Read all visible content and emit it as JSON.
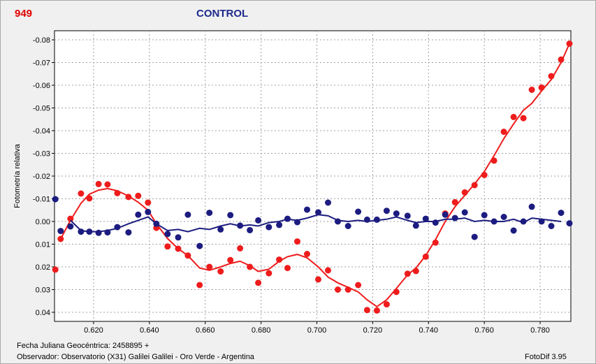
{
  "header": {
    "id_label": "949",
    "title": "CONTROL"
  },
  "footer": {
    "jd_text": "Fecha Juliana Geocéntrica: 2458895 +",
    "observer_text": "Observador: Observatorio (X31) Galilei Galilei - Oro Verde - Argentina",
    "software_text": "FotoDif 3.95"
  },
  "chart_data": {
    "type": "scatter",
    "title": "CONTROL",
    "xlabel": "",
    "ylabel": "Fotometría relativa",
    "xlim": [
      0.606,
      0.791
    ],
    "ylim": [
      0.044,
      -0.084
    ],
    "y_inverted": true,
    "grid": true,
    "x_ticks": [
      "0.620",
      "0.640",
      "0.660",
      "0.680",
      "0.700",
      "0.720",
      "0.740",
      "0.760",
      "0.780"
    ],
    "x_tick_values": [
      0.62,
      0.64,
      0.66,
      0.68,
      0.7,
      0.72,
      0.74,
      0.76,
      0.78
    ],
    "y_ticks": [
      "-0.08",
      "-0.07",
      "-0.06",
      "-0.05",
      "-0.04",
      "-0.03",
      "-0.02",
      "-0.01",
      "0.00",
      "0.01",
      "0.02",
      "0.03",
      "0.04"
    ],
    "y_tick_values": [
      -0.08,
      -0.07,
      -0.06,
      -0.05,
      -0.04,
      -0.03,
      -0.02,
      -0.01,
      0.0,
      0.01,
      0.02,
      0.03,
      0.04
    ],
    "series": [
      {
        "color": "#ee1c1c",
        "points": [
          [
            0.6063,
            0.0212
          ],
          [
            0.6082,
            0.0077
          ],
          [
            0.6117,
            -0.0012
          ],
          [
            0.6155,
            -0.0123
          ],
          [
            0.6185,
            -0.0102
          ],
          [
            0.6218,
            -0.0165
          ],
          [
            0.625,
            -0.0163
          ],
          [
            0.6285,
            -0.0125
          ],
          [
            0.6325,
            -0.0108
          ],
          [
            0.636,
            -0.0113
          ],
          [
            0.6395,
            -0.0083
          ],
          [
            0.6425,
            0.0028
          ],
          [
            0.6465,
            0.011
          ],
          [
            0.6503,
            0.012
          ],
          [
            0.6538,
            0.015
          ],
          [
            0.658,
            0.028
          ],
          [
            0.6615,
            0.02
          ],
          [
            0.6655,
            0.022
          ],
          [
            0.669,
            0.017
          ],
          [
            0.6725,
            0.0118
          ],
          [
            0.676,
            0.02
          ],
          [
            0.679,
            0.027
          ],
          [
            0.6828,
            0.0228
          ],
          [
            0.6865,
            0.0168
          ],
          [
            0.6895,
            0.0205
          ],
          [
            0.693,
            0.0088
          ],
          [
            0.6965,
            0.0143
          ],
          [
            0.7005,
            0.0255
          ],
          [
            0.704,
            0.0215
          ],
          [
            0.7075,
            0.03
          ],
          [
            0.7112,
            0.03
          ],
          [
            0.7148,
            0.028
          ],
          [
            0.718,
            0.039
          ],
          [
            0.7215,
            0.0392
          ],
          [
            0.725,
            0.0365
          ],
          [
            0.7285,
            0.031
          ],
          [
            0.7325,
            0.023
          ],
          [
            0.7355,
            0.0218
          ],
          [
            0.739,
            0.0155
          ],
          [
            0.7425,
            0.0093
          ],
          [
            0.746,
            -0.0035
          ],
          [
            0.7495,
            -0.0085
          ],
          [
            0.753,
            -0.0128
          ],
          [
            0.7565,
            -0.016
          ],
          [
            0.76,
            -0.0205
          ],
          [
            0.7635,
            -0.0268
          ],
          [
            0.767,
            -0.0395
          ],
          [
            0.7705,
            -0.046
          ],
          [
            0.774,
            -0.0455
          ],
          [
            0.777,
            -0.058
          ],
          [
            0.7805,
            -0.059
          ],
          [
            0.784,
            -0.064
          ],
          [
            0.7875,
            -0.0713
          ],
          [
            0.7905,
            -0.0783
          ]
        ],
        "trend": [
          [
            0.6082,
            0.0077
          ],
          [
            0.6117,
            -0.0005
          ],
          [
            0.6155,
            -0.008
          ],
          [
            0.6185,
            -0.012
          ],
          [
            0.6218,
            -0.0138
          ],
          [
            0.625,
            -0.0145
          ],
          [
            0.6285,
            -0.0135
          ],
          [
            0.6325,
            -0.0112
          ],
          [
            0.636,
            -0.0085
          ],
          [
            0.6395,
            -0.005
          ],
          [
            0.6425,
            0.001
          ],
          [
            0.6465,
            0.0075
          ],
          [
            0.6503,
            0.012
          ],
          [
            0.6538,
            0.015
          ],
          [
            0.658,
            0.0205
          ],
          [
            0.6615,
            0.0215
          ],
          [
            0.6655,
            0.02
          ],
          [
            0.669,
            0.0185
          ],
          [
            0.6725,
            0.0175
          ],
          [
            0.676,
            0.0195
          ],
          [
            0.679,
            0.022
          ],
          [
            0.6828,
            0.021
          ],
          [
            0.6865,
            0.0175
          ],
          [
            0.6895,
            0.0155
          ],
          [
            0.693,
            0.0145
          ],
          [
            0.6965,
            0.016
          ],
          [
            0.7005,
            0.02
          ],
          [
            0.704,
            0.0245
          ],
          [
            0.7075,
            0.027
          ],
          [
            0.7112,
            0.029
          ],
          [
            0.7148,
            0.031
          ],
          [
            0.718,
            0.0345
          ],
          [
            0.7215,
            0.0375
          ],
          [
            0.725,
            0.0345
          ],
          [
            0.7285,
            0.0295
          ],
          [
            0.7325,
            0.0235
          ],
          [
            0.7355,
            0.0205
          ],
          [
            0.739,
            0.015
          ],
          [
            0.7425,
            0.008
          ],
          [
            0.746,
            0.0
          ],
          [
            0.7495,
            -0.0065
          ],
          [
            0.753,
            -0.0115
          ],
          [
            0.7565,
            -0.0165
          ],
          [
            0.76,
            -0.022
          ],
          [
            0.7635,
            -0.029
          ],
          [
            0.767,
            -0.0365
          ],
          [
            0.7705,
            -0.043
          ],
          [
            0.774,
            -0.049
          ],
          [
            0.777,
            -0.052
          ],
          [
            0.7805,
            -0.0575
          ],
          [
            0.784,
            -0.0625
          ],
          [
            0.7875,
            -0.07
          ],
          [
            0.7905,
            -0.0783
          ]
        ]
      },
      {
        "color": "#1c1c80",
        "points": [
          [
            0.6063,
            -0.0098
          ],
          [
            0.6082,
            0.0042
          ],
          [
            0.6117,
            0.0022
          ],
          [
            0.6155,
            0.0045
          ],
          [
            0.6185,
            0.0045
          ],
          [
            0.6218,
            0.005
          ],
          [
            0.625,
            0.0048
          ],
          [
            0.6285,
            0.0025
          ],
          [
            0.6325,
            0.0048
          ],
          [
            0.636,
            -0.003
          ],
          [
            0.6395,
            -0.0042
          ],
          [
            0.6425,
            0.001
          ],
          [
            0.6465,
            0.0055
          ],
          [
            0.6503,
            0.007
          ],
          [
            0.6538,
            -0.003
          ],
          [
            0.658,
            0.0108
          ],
          [
            0.6615,
            -0.0038
          ],
          [
            0.6655,
            0.0035
          ],
          [
            0.669,
            -0.0028
          ],
          [
            0.6725,
            0.0018
          ],
          [
            0.676,
            0.0038
          ],
          [
            0.679,
            -0.0005
          ],
          [
            0.6828,
            0.0025
          ],
          [
            0.6865,
            0.0015
          ],
          [
            0.6895,
            -0.0012
          ],
          [
            0.693,
            0.0003
          ],
          [
            0.6965,
            -0.0052
          ],
          [
            0.7005,
            -0.004
          ],
          [
            0.704,
            -0.0083
          ],
          [
            0.7075,
            0.0
          ],
          [
            0.7112,
            0.002
          ],
          [
            0.7148,
            -0.0043
          ],
          [
            0.718,
            -0.0008
          ],
          [
            0.7215,
            -0.0008
          ],
          [
            0.725,
            -0.0047
          ],
          [
            0.7285,
            -0.0035
          ],
          [
            0.7325,
            -0.0025
          ],
          [
            0.7355,
            0.0018
          ],
          [
            0.739,
            -0.0012
          ],
          [
            0.7425,
            0.0005
          ],
          [
            0.746,
            -0.003
          ],
          [
            0.7495,
            -0.0015
          ],
          [
            0.753,
            -0.004
          ],
          [
            0.7565,
            0.0068
          ],
          [
            0.76,
            -0.0028
          ],
          [
            0.7635,
            0.0
          ],
          [
            0.767,
            -0.002
          ],
          [
            0.7705,
            0.004
          ],
          [
            0.774,
            0.0
          ],
          [
            0.777,
            -0.0065
          ],
          [
            0.7805,
            0.0
          ],
          [
            0.784,
            0.002
          ],
          [
            0.7875,
            -0.0038
          ],
          [
            0.7905,
            0.0008
          ]
        ],
        "trend": [
          [
            0.6117,
            -0.0005
          ],
          [
            0.6155,
            0.004
          ],
          [
            0.6185,
            0.0045
          ],
          [
            0.6218,
            0.0045
          ],
          [
            0.625,
            0.004
          ],
          [
            0.6285,
            0.003
          ],
          [
            0.6325,
            0.001
          ],
          [
            0.636,
            -0.0005
          ],
          [
            0.6395,
            -0.002
          ],
          [
            0.6425,
            0.001
          ],
          [
            0.6465,
            0.004
          ],
          [
            0.6503,
            0.0035
          ],
          [
            0.6538,
            0.0045
          ],
          [
            0.658,
            0.003
          ],
          [
            0.6615,
            0.0035
          ],
          [
            0.6655,
            0.002
          ],
          [
            0.669,
            0.001
          ],
          [
            0.6725,
            0.002
          ],
          [
            0.676,
            0.0015
          ],
          [
            0.679,
            0.002
          ],
          [
            0.6828,
            0.0005
          ],
          [
            0.6865,
            0.0
          ],
          [
            0.6895,
            -0.001
          ],
          [
            0.693,
            -0.0005
          ],
          [
            0.6965,
            -0.0015
          ],
          [
            0.7005,
            -0.003
          ],
          [
            0.704,
            -0.0025
          ],
          [
            0.7075,
            -0.0005
          ],
          [
            0.7112,
            0.0
          ],
          [
            0.7148,
            -0.0005
          ],
          [
            0.718,
            0.0
          ],
          [
            0.7215,
            -0.0005
          ],
          [
            0.725,
            -0.001
          ],
          [
            0.7285,
            -0.002
          ],
          [
            0.7325,
            -0.0005
          ],
          [
            0.7355,
            0.0005
          ],
          [
            0.739,
            0.0
          ],
          [
            0.7425,
            0.0
          ],
          [
            0.746,
            -0.001
          ],
          [
            0.7495,
            -0.001
          ],
          [
            0.753,
            -0.0015
          ],
          [
            0.7565,
            0.0
          ],
          [
            0.76,
            -0.0005
          ],
          [
            0.7635,
            0.0
          ],
          [
            0.767,
            0.0
          ],
          [
            0.7705,
            -0.001
          ],
          [
            0.774,
            0.0005
          ],
          [
            0.777,
            -0.0015
          ],
          [
            0.7805,
            -0.001
          ],
          [
            0.7875,
            0.0
          ]
        ]
      }
    ]
  }
}
